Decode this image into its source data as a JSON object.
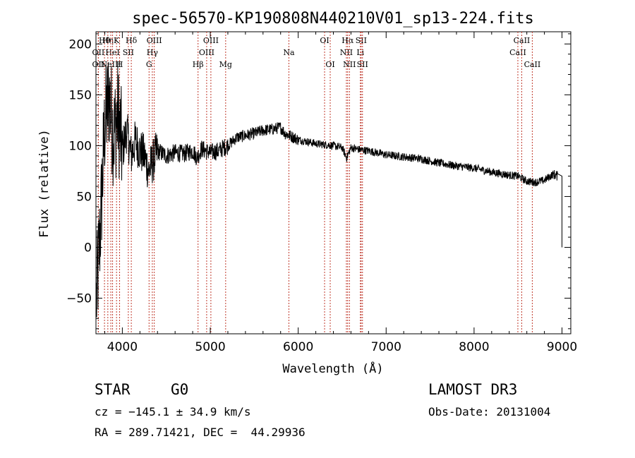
{
  "chart_data": {
    "type": "line",
    "title": "spec-56570-KP190808N440210V01_sp13-224.fits",
    "xlabel": "Wavelength (Å)",
    "ylabel": "Flux (relative)",
    "xlim": [
      3700,
      9100
    ],
    "ylim": [
      -85,
      212
    ],
    "xticks": [
      4000,
      5000,
      6000,
      7000,
      8000,
      9000
    ],
    "yticks": [
      -50,
      0,
      50,
      100,
      150,
      200
    ],
    "grid": false,
    "series": [
      {
        "name": "flux",
        "x": [
          3700,
          3750,
          3800,
          3850,
          3900,
          3950,
          4000,
          4050,
          4100,
          4150,
          4200,
          4250,
          4300,
          4350,
          4400,
          4500,
          4600,
          4700,
          4800,
          4850,
          4900,
          5000,
          5100,
          5150,
          5200,
          5300,
          5400,
          5500,
          5600,
          5700,
          5800,
          5850,
          5900,
          5950,
          6000,
          6100,
          6200,
          6300,
          6400,
          6500,
          6550,
          6600,
          6700,
          6800,
          6900,
          7000,
          7200,
          7400,
          7600,
          7800,
          8000,
          8200,
          8400,
          8500,
          8600,
          8700,
          8800,
          8900,
          8950,
          9000
        ],
        "values": [
          -60,
          20,
          120,
          150,
          110,
          130,
          95,
          115,
          90,
          105,
          95,
          90,
          75,
          85,
          95,
          90,
          93,
          92,
          95,
          88,
          97,
          93,
          95,
          98,
          100,
          108,
          110,
          112,
          115,
          116,
          118,
          112,
          110,
          108,
          106,
          104,
          102,
          101,
          100,
          98,
          88,
          98,
          96,
          95,
          93,
          91,
          89,
          87,
          83,
          80,
          78,
          74,
          71,
          70,
          65,
          64,
          66,
          72,
          70,
          0
        ]
      }
    ],
    "lines": [
      {
        "wl": 3797,
        "label": "Hθ",
        "row": 1
      },
      {
        "wl": 3835,
        "label": "Hη",
        "row": 1
      },
      {
        "wl": 3889,
        "label": "HeI",
        "row": 2
      },
      {
        "wl": 3934,
        "label": "K",
        "row": 1
      },
      {
        "wl": 3969,
        "label": "H",
        "row": 3
      },
      {
        "wl": 4102,
        "label": "Hδ",
        "row": 1
      },
      {
        "wl": 3727,
        "label": "OII",
        "row": 2
      },
      {
        "wl": 3727,
        "label": "OII",
        "row": 3
      },
      {
        "wl": 3869,
        "label": "NeIII",
        "row": 3
      },
      {
        "wl": 4068,
        "label": "SII",
        "row": 2
      },
      {
        "wl": 4304,
        "label": "G",
        "row": 3
      },
      {
        "wl": 4341,
        "label": "Hγ",
        "row": 2
      },
      {
        "wl": 4363,
        "label": "OIII",
        "row": 1
      },
      {
        "wl": 4861,
        "label": "Hβ",
        "row": 3
      },
      {
        "wl": 4959,
        "label": "OIII",
        "row": 2
      },
      {
        "wl": 5007,
        "label": "OIII",
        "row": 1
      },
      {
        "wl": 5175,
        "label": "Mg",
        "row": 3
      },
      {
        "wl": 5894,
        "label": "Na",
        "row": 2
      },
      {
        "wl": 6300,
        "label": "OI",
        "row": 1
      },
      {
        "wl": 6364,
        "label": "OI",
        "row": 3
      },
      {
        "wl": 6548,
        "label": "NII",
        "row": 2
      },
      {
        "wl": 6563,
        "label": "Hα",
        "row": 1
      },
      {
        "wl": 6583,
        "label": "NII",
        "row": 3
      },
      {
        "wl": 6707,
        "label": "Li",
        "row": 2
      },
      {
        "wl": 6716,
        "label": "SII",
        "row": 1
      },
      {
        "wl": 6731,
        "label": "SII",
        "row": 3
      },
      {
        "wl": 8498,
        "label": "CaII",
        "row": 2
      },
      {
        "wl": 8542,
        "label": "CaII",
        "row": 1
      },
      {
        "wl": 8662,
        "label": "CaII",
        "row": 3
      }
    ]
  },
  "info": {
    "class": "STAR",
    "subclass": "G0",
    "survey": "LAMOST DR3",
    "cz": "cz = −145.1 ± 34.9 km/s",
    "obs_date": "Obs-Date: 20131004",
    "radec": "RA = 289.71421, DEC =  44.29936"
  }
}
